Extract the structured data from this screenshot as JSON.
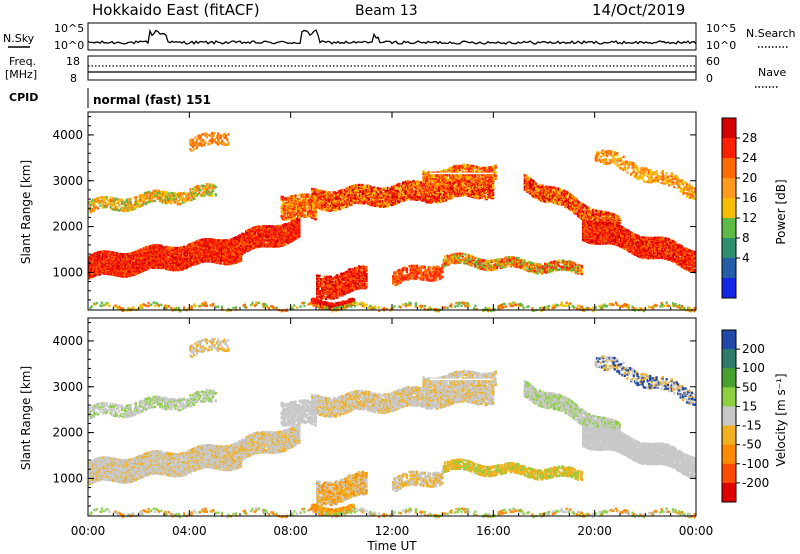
{
  "header": {
    "title": "Hokkaido East (fitACF)",
    "beam": "Beam 13",
    "date": "14/Oct/2019"
  },
  "top_panels": {
    "nsky_label": "N.Sky",
    "nsky_ticks": [
      "10^5",
      "10^0"
    ],
    "nsearch_label": "N.Search",
    "nsearch_ticks": [
      "10^5",
      "10^0"
    ],
    "freq_label_1": "Freq.",
    "freq_label_2": "[MHz]",
    "freq_ticks": [
      "18",
      "8"
    ],
    "nave_label": "Nave",
    "nave_ticks": [
      "60",
      "0"
    ],
    "cpid_label": "CPID",
    "cpid_text": "normal (fast) 151"
  },
  "chart_data": [
    {
      "type": "heatmap",
      "panel": "power",
      "ylabel": "Slant Range [km]",
      "yticks": [
        "1000",
        "2000",
        "3000",
        "4000"
      ],
      "ylim": [
        180,
        4500
      ],
      "xlim": [
        0,
        24
      ],
      "colorbar_label": "Power [dB]",
      "colorbar_ticks": [
        "28",
        "24",
        "20",
        "16",
        "12",
        "8",
        "4"
      ],
      "colorbar_colors": [
        "#d40000",
        "#ff2000",
        "#ff6a00",
        "#ff9a1a",
        "#f5be00",
        "#5dba45",
        "#2e8e6e",
        "#245ea8",
        "#1525e6"
      ]
    },
    {
      "type": "heatmap",
      "panel": "velocity",
      "ylabel": "Slant Range [km]",
      "yticks": [
        "1000",
        "2000",
        "3000",
        "4000"
      ],
      "ylim": [
        180,
        4500
      ],
      "xlim": [
        0,
        24
      ],
      "xlabel": "Time UT",
      "xticks": [
        "00:00",
        "04:00",
        "08:00",
        "12:00",
        "16:00",
        "20:00",
        "00:00"
      ],
      "colorbar_label": "Velocity [m s⁻¹]",
      "colorbar_ticks": [
        "200",
        "100",
        "50",
        "15",
        "-15",
        "-50",
        "-100",
        "-200"
      ],
      "colorbar_colors": [
        "#2048a8",
        "#2e7a6a",
        "#48a030",
        "#8cd040",
        "#c8c8c8",
        "#f0b020",
        "#ff8a00",
        "#ff4a00",
        "#e00000"
      ]
    }
  ]
}
